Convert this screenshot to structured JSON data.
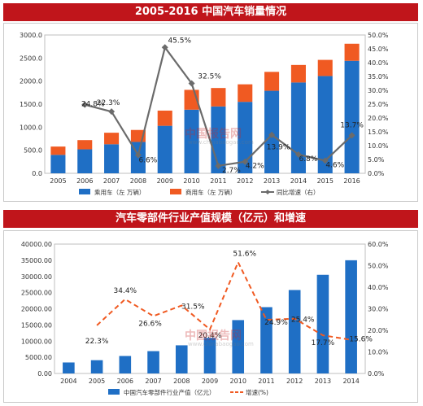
{
  "colors": {
    "banner": "#c0151b",
    "blue": "#1f6fc5",
    "orange": "#f05a22",
    "line_gray": "#6b6b6b",
    "dash_orange": "#f05a22"
  },
  "watermark": {
    "text": "中国报告网",
    "sub": "www.chinabaogao.com"
  },
  "chart_data": [
    {
      "type": "bar",
      "stacked": true,
      "title": "2005-2016 中国汽车销量情况",
      "categories": [
        "2005",
        "2006",
        "2007",
        "2008",
        "2009",
        "2010",
        "2011",
        "2012",
        "2013",
        "2014",
        "2015",
        "2016"
      ],
      "series": [
        {
          "name": "乘用车（左 万辆）",
          "kind": "bar",
          "axis": "left",
          "values": [
            400,
            520,
            630,
            680,
            1030,
            1380,
            1450,
            1550,
            1790,
            1970,
            2110,
            2440
          ]
        },
        {
          "name": "商用车（左 万辆）",
          "kind": "bar",
          "axis": "left",
          "values": [
            180,
            200,
            250,
            260,
            330,
            430,
            400,
            380,
            410,
            380,
            350,
            370
          ]
        },
        {
          "name": "同比增速（右）",
          "kind": "line",
          "axis": "right",
          "values": [
            null,
            24.8,
            22.3,
            6.6,
            45.5,
            32.5,
            2.7,
            4.2,
            13.9,
            6.8,
            4.6,
            13.7
          ],
          "labels": [
            "",
            "24.8%",
            "22.3%",
            "6.6%",
            "45.5%",
            "32.5%",
            "2.7%",
            "4.2%",
            "13.9%",
            "6.8%",
            "4.6%",
            "13.7%"
          ]
        }
      ],
      "ylim_left": [
        0,
        3000
      ],
      "yticks_left": [
        "0.0",
        "500.0",
        "1000.0",
        "1500.0",
        "2000.0",
        "2500.0",
        "3000.0"
      ],
      "ylim_right": [
        0,
        50
      ],
      "yticks_right": [
        "0.0%",
        "5.0%",
        "10.0%",
        "15.0%",
        "20.0%",
        "25.0%",
        "30.0%",
        "35.0%",
        "40.0%",
        "45.0%",
        "50.0%"
      ],
      "legend_position": "bottom"
    },
    {
      "type": "bar",
      "title": "汽车零部件行业产值规模（亿元）和增速",
      "categories": [
        "2004",
        "2005",
        "2006",
        "2007",
        "2008",
        "2009",
        "2010",
        "2011",
        "2012",
        "2013",
        "2014"
      ],
      "series": [
        {
          "name": "中国汽车零部件行业产值（亿元）",
          "kind": "bar",
          "axis": "left",
          "values": [
            3400,
            4100,
            5400,
            6900,
            8700,
            11000,
            16500,
            20500,
            25800,
            30500,
            35000
          ]
        },
        {
          "name": "增速(%)",
          "kind": "dashed-line",
          "axis": "right",
          "values": [
            null,
            22.3,
            34.4,
            26.6,
            31.5,
            20.4,
            51.6,
            24.9,
            25.4,
            17.7,
            15.6
          ],
          "labels": [
            "",
            "22.3%",
            "34.4%",
            "26.6%",
            "31.5%",
            "20.4%",
            "51.6%",
            "24.9%",
            "25.4%",
            "17.7%",
            "15.6%"
          ]
        }
      ],
      "ylim_left": [
        0,
        40000
      ],
      "yticks_left": [
        "0.00",
        "5000.00",
        "10000.00",
        "15000.00",
        "20000.00",
        "25000.00",
        "30000.00",
        "35000.00",
        "40000.00"
      ],
      "ylim_right": [
        0,
        60
      ],
      "yticks_right": [
        "0.0%",
        "10.0%",
        "20.0%",
        "30.0%",
        "40.0%",
        "50.0%",
        "60.0%"
      ],
      "legend_position": "bottom"
    }
  ]
}
